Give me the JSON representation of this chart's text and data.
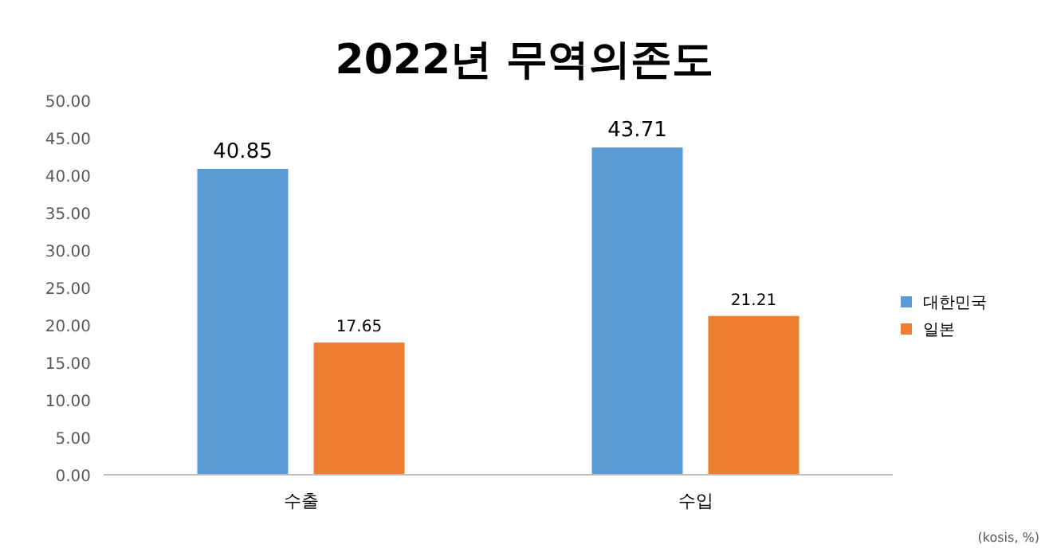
{
  "chart_data": {
    "type": "bar",
    "title": "2022년 무역의존도",
    "categories": [
      "수출",
      "수입"
    ],
    "series": [
      {
        "name": "대한민국",
        "color": "#5b9bd5",
        "values": [
          40.85,
          43.71
        ]
      },
      {
        "name": "일본",
        "color": "#ed7d31",
        "values": [
          17.65,
          21.21
        ]
      }
    ],
    "ylim": [
      0,
      50
    ],
    "yticks": [
      {
        "value": 0,
        "label": "0.00"
      },
      {
        "value": 5,
        "label": "5.00"
      },
      {
        "value": 10,
        "label": "10.00"
      },
      {
        "value": 15,
        "label": "15.00"
      },
      {
        "value": 20,
        "label": "20.00"
      },
      {
        "value": 25,
        "label": "25.00"
      },
      {
        "value": 30,
        "label": "30.00"
      },
      {
        "value": 35,
        "label": "35.00"
      },
      {
        "value": 40,
        "label": "40.00"
      },
      {
        "value": 45,
        "label": "45.00"
      },
      {
        "value": 50,
        "label": "50.00"
      }
    ],
    "data_labels": true,
    "legend": "right",
    "grid": false,
    "annotations": [
      "(kosis, %)"
    ]
  }
}
